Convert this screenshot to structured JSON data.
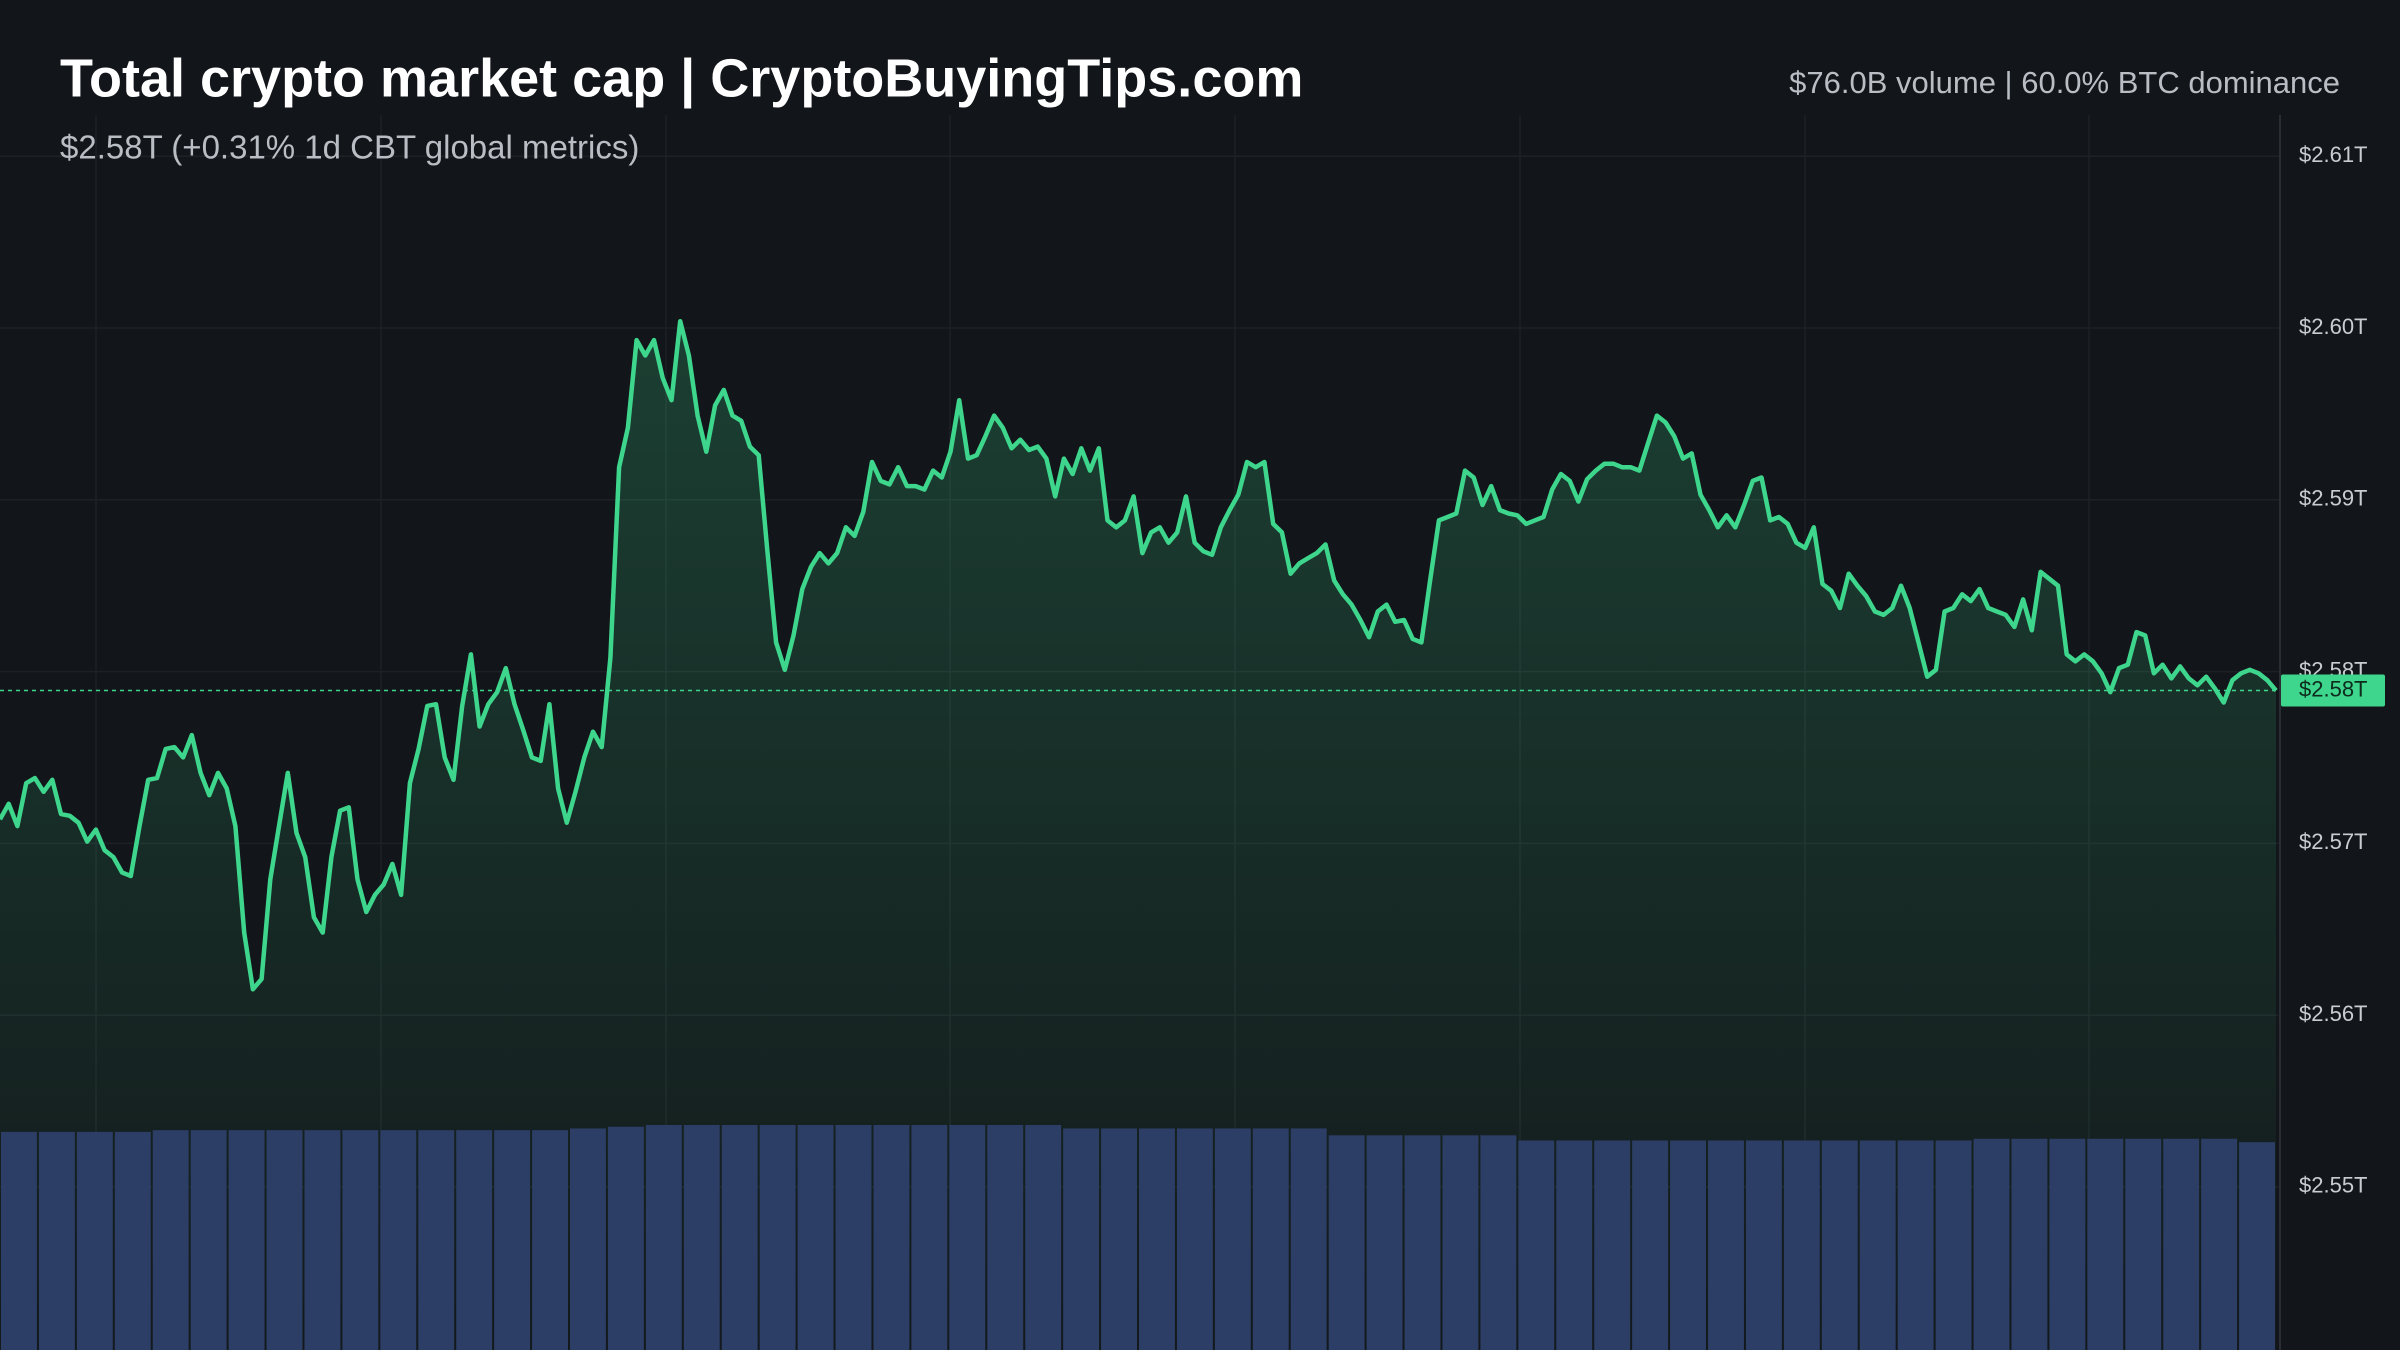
{
  "chart_data": {
    "type": "line",
    "title": "Total crypto market cap | CryptoBuyingTips.com",
    "subtitle": "$2.58T (+0.31% 1d CBT global metrics)",
    "header_right": "$76.0B volume | 60.0% BTC dominance",
    "color": "#3dd68c",
    "grid": true,
    "ylim": [
      2.5405,
      2.6191
    ],
    "yticks": [
      {
        "value": 2.55,
        "label": "$2.55T"
      },
      {
        "value": 2.56,
        "label": "$2.56T"
      },
      {
        "value": 2.57,
        "label": "$2.57T"
      },
      {
        "value": 2.58,
        "label": "$2.58T"
      },
      {
        "value": 2.59,
        "label": "$2.59T"
      },
      {
        "value": 2.6,
        "label": "$2.60T"
      },
      {
        "value": 2.61,
        "label": "$2.61T"
      }
    ],
    "price_marker": {
      "value": 2.5789,
      "label": "$2.58T"
    },
    "values": [
      2.5714,
      2.5723,
      2.571,
      2.5735,
      2.5738,
      2.573,
      2.5737,
      2.5717,
      2.5716,
      2.5712,
      2.5701,
      2.5708,
      2.5696,
      2.5692,
      2.5683,
      2.5681,
      2.571,
      2.5737,
      2.5738,
      2.5755,
      2.5756,
      2.575,
      2.5763,
      2.5741,
      2.5728,
      2.5741,
      2.5732,
      2.571,
      2.5648,
      2.5615,
      2.5621,
      2.5679,
      2.571,
      2.5741,
      2.5706,
      2.5692,
      2.5657,
      2.5648,
      2.5692,
      2.5719,
      2.5721,
      2.5679,
      2.566,
      2.567,
      2.5676,
      2.5688,
      2.567,
      2.5735,
      2.5755,
      2.578,
      2.5781,
      2.575,
      2.5737,
      2.578,
      2.581,
      2.5768,
      2.5781,
      2.5788,
      2.5802,
      2.5781,
      2.5766,
      2.575,
      2.5748,
      2.5781,
      2.5732,
      2.5712,
      2.573,
      2.575,
      2.5765,
      2.5756,
      2.5808,
      2.5919,
      2.5942,
      2.5993,
      2.5984,
      2.5993,
      2.5971,
      2.5958,
      2.6004,
      2.5984,
      2.5949,
      2.5928,
      2.5955,
      2.5964,
      2.5949,
      2.5946,
      2.5931,
      2.5926,
      2.587,
      2.5817,
      2.5801,
      2.5821,
      2.5848,
      2.5861,
      2.5869,
      2.5863,
      2.5869,
      2.5884,
      2.5879,
      2.5893,
      2.5922,
      2.5911,
      2.5909,
      2.5919,
      2.5908,
      2.5908,
      2.5906,
      2.5917,
      2.5913,
      2.5928,
      2.5958,
      2.5924,
      2.5926,
      2.5937,
      2.5949,
      2.5942,
      2.593,
      2.5935,
      2.5929,
      2.5931,
      2.5924,
      2.5902,
      2.5924,
      2.5915,
      2.593,
      2.5917,
      2.593,
      2.5888,
      2.5884,
      2.5888,
      2.5902,
      2.5869,
      2.5881,
      2.5884,
      2.5875,
      2.5881,
      2.5902,
      2.5875,
      2.587,
      2.5868,
      2.5884,
      2.5894,
      2.5903,
      2.5922,
      2.5919,
      2.5922,
      2.5886,
      2.5881,
      2.5857,
      2.5863,
      2.5866,
      2.5869,
      2.5874,
      2.5853,
      2.5845,
      2.5839,
      2.583,
      2.582,
      2.5835,
      2.5839,
      2.5829,
      2.583,
      2.5819,
      2.5817,
      2.5853,
      2.5888,
      2.589,
      2.5892,
      2.5917,
      2.5913,
      2.5897,
      2.5908,
      2.5894,
      2.5892,
      2.5891,
      2.5886,
      2.5888,
      2.589,
      2.5906,
      2.5915,
      2.5911,
      2.5899,
      2.5912,
      2.5917,
      2.5921,
      2.5921,
      2.5919,
      2.5919,
      2.5917,
      2.5933,
      2.5949,
      2.5945,
      2.5937,
      2.5924,
      2.5927,
      2.5903,
      2.5894,
      2.5884,
      2.5891,
      2.5884,
      2.5897,
      2.5911,
      2.5913,
      2.5888,
      2.589,
      2.5886,
      2.5875,
      2.5872,
      2.5884,
      2.5851,
      2.5847,
      2.5837,
      2.5857,
      2.585,
      2.5844,
      2.5835,
      2.5833,
      2.5837,
      2.585,
      2.5837,
      2.5817,
      2.5797,
      2.5801,
      2.5835,
      2.5837,
      2.5845,
      2.5841,
      2.5848,
      2.5837,
      2.5835,
      2.5833,
      2.5826,
      2.5842,
      2.5824,
      2.5858,
      2.5854,
      2.585,
      2.581,
      2.5806,
      2.581,
      2.5806,
      2.5799,
      2.5788,
      2.5802,
      2.5804,
      2.5823,
      2.5821,
      2.5799,
      2.5804,
      2.5796,
      2.5803,
      2.5796,
      2.5792,
      2.5797,
      2.579,
      2.5782,
      2.5795,
      2.5799,
      2.5801,
      2.5799,
      2.5795,
      2.5789
    ],
    "volume": {
      "color": "#2c3d66",
      "values": [
        2.5532,
        2.5532,
        2.5532,
        2.5532,
        2.5533,
        2.5533,
        2.5533,
        2.5533,
        2.5533,
        2.5533,
        2.5533,
        2.5533,
        2.5533,
        2.5533,
        2.5533,
        2.5534,
        2.5535,
        2.5536,
        2.5536,
        2.5536,
        2.5536,
        2.5536,
        2.5536,
        2.5536,
        2.5536,
        2.5536,
        2.5536,
        2.5536,
        2.5534,
        2.5534,
        2.5534,
        2.5534,
        2.5534,
        2.5534,
        2.5534,
        2.553,
        2.553,
        2.553,
        2.553,
        2.553,
        2.5527,
        2.5527,
        2.5527,
        2.5527,
        2.5527,
        2.5527,
        2.5527,
        2.5527,
        2.5527,
        2.5527,
        2.5527,
        2.5527,
        2.5528,
        2.5528,
        2.5528,
        2.5528,
        2.5528,
        2.5528,
        2.5528,
        2.5526
      ]
    }
  }
}
